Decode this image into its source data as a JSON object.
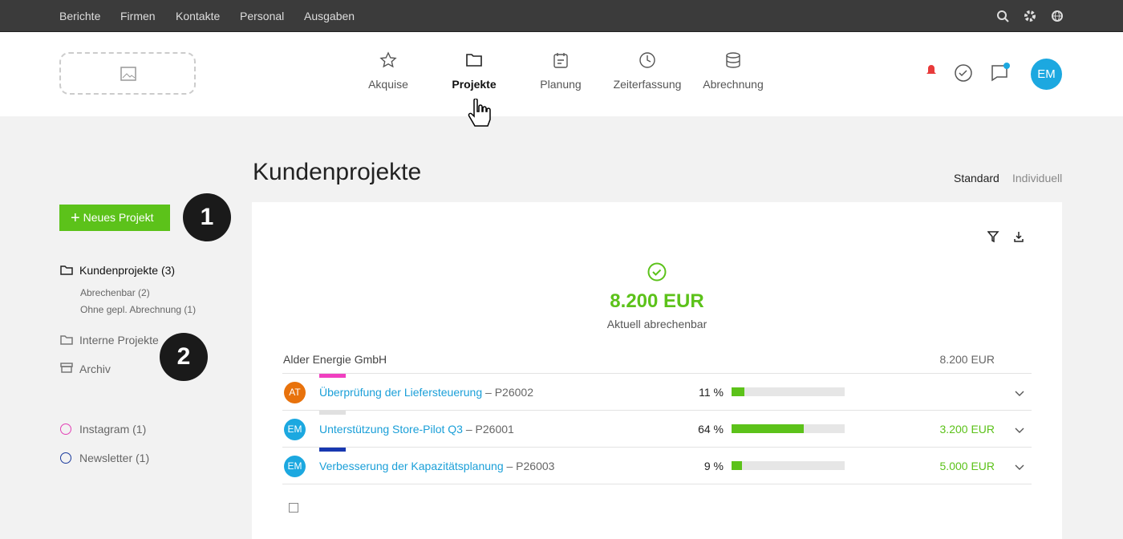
{
  "topbar": {
    "links": [
      "Berichte",
      "Firmen",
      "Kontakte",
      "Personal",
      "Ausgaben"
    ]
  },
  "nav": {
    "items": [
      "Akquise",
      "Projekte",
      "Planung",
      "Zeiterfassung",
      "Abrechnung"
    ],
    "avatar": "EM"
  },
  "page": {
    "title": "Kundenprojekte",
    "views": [
      "Standard",
      "Individuell"
    ]
  },
  "sidebar": {
    "button": "Neues Projekt",
    "folder": "Kundenprojekte (3)",
    "subfolders": [
      "Abrechenbar (2)",
      "Ohne gepl. Abrechnung (1)"
    ],
    "others": [
      "Interne Projekte",
      "Archiv"
    ],
    "tags": [
      {
        "name": "Instagram (1)",
        "color": "#e23fb5"
      },
      {
        "name": "Newsletter (1)",
        "color": "#1a3a9c"
      }
    ]
  },
  "badges": [
    "1",
    "2"
  ],
  "summary": {
    "amount": "8.200 EUR",
    "caption": "Aktuell abrechenbar"
  },
  "group": {
    "name": "Alder Energie GmbH",
    "total": "8.200 EUR"
  },
  "projects": [
    {
      "initials": "AT",
      "avatar_color": "#e8720c",
      "tag_color": "#f03fc0",
      "name": "Überprüfung der Liefersteuerung",
      "code": "– P26002",
      "progress": 11,
      "progress_label": "11 %"
    },
    {
      "initials": "EM",
      "avatar_color": "#1ca8e0",
      "tag_color": "#e0e0e0",
      "name": "Unterstützung Store-Pilot Q3",
      "code": "– P26001",
      "progress": 64,
      "progress_label": "64 %",
      "amount": "3.200 EUR"
    },
    {
      "initials": "EM",
      "avatar_color": "#1ca8e0",
      "tag_color": "#1838b0",
      "name": "Verbesserung der Kapazitätsplanung",
      "code": "– P26003",
      "progress": 9,
      "progress_label": "9 %",
      "amount": "5.000 EUR"
    }
  ]
}
